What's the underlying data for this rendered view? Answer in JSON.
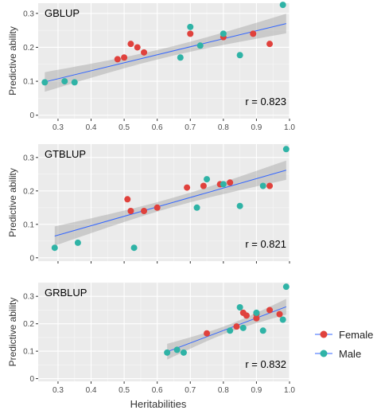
{
  "legend": {
    "entries": [
      {
        "label": "Female",
        "color": "#E0413C"
      },
      {
        "label": "Male",
        "color": "#2FB3A6"
      }
    ]
  },
  "chart_data": [
    {
      "type": "scatter",
      "title": "GBLUP",
      "r_label": "r = 0.823",
      "ylabel": "Predictive ability",
      "xlabel": "",
      "xlim": [
        0.24,
        1.0
      ],
      "ylim": [
        -0.01,
        0.33
      ],
      "xticks": [
        0.3,
        0.4,
        0.5,
        0.6,
        0.7,
        0.8,
        0.9,
        1.0
      ],
      "xtick_labels": [
        "0.3",
        "0.4",
        "0.5",
        "0.6",
        "0.7",
        "0.8",
        "0.9",
        "1.0"
      ],
      "yticks": [
        0,
        0.1,
        0.2,
        0.3
      ],
      "ytick_labels": [
        "0",
        "0.1",
        "0.2",
        "0.3"
      ],
      "show_x_tick_labels": true,
      "fit": {
        "x": [
          0.26,
          0.99
        ],
        "y": [
          0.098,
          0.27
        ]
      },
      "series": [
        {
          "name": "Female",
          "color": "#E0413C",
          "x": [
            0.48,
            0.5,
            0.52,
            0.54,
            0.56,
            0.7,
            0.8,
            0.89,
            0.94
          ],
          "y": [
            0.165,
            0.17,
            0.21,
            0.2,
            0.185,
            0.24,
            0.23,
            0.24,
            0.21
          ]
        },
        {
          "name": "Male",
          "color": "#2FB3A6",
          "x": [
            0.26,
            0.32,
            0.35,
            0.67,
            0.7,
            0.73,
            0.8,
            0.85,
            0.98
          ],
          "y": [
            0.097,
            0.1,
            0.097,
            0.17,
            0.26,
            0.205,
            0.24,
            0.177,
            0.325
          ]
        }
      ]
    },
    {
      "type": "scatter",
      "title": "GTBLUP",
      "r_label": "r = 0.821",
      "ylabel": "Predictive ability",
      "xlabel": "",
      "xlim": [
        0.24,
        1.0
      ],
      "ylim": [
        -0.01,
        0.34
      ],
      "xticks": [
        0.3,
        0.4,
        0.5,
        0.6,
        0.7,
        0.8,
        0.9,
        1.0
      ],
      "xtick_labels": [
        "0.3",
        "0.4",
        "0.5",
        "0.6",
        "0.7",
        "0.8",
        "0.9",
        "1.0"
      ],
      "yticks": [
        0,
        0.1,
        0.2,
        0.3
      ],
      "ytick_labels": [
        "0",
        "0.1",
        "0.2",
        "0.3"
      ],
      "show_x_tick_labels": false,
      "fit": {
        "x": [
          0.29,
          0.99
        ],
        "y": [
          0.065,
          0.262
        ]
      },
      "series": [
        {
          "name": "Female",
          "color": "#E0413C",
          "x": [
            0.51,
            0.52,
            0.56,
            0.6,
            0.69,
            0.74,
            0.79,
            0.82,
            0.94
          ],
          "y": [
            0.175,
            0.14,
            0.14,
            0.15,
            0.21,
            0.215,
            0.22,
            0.225,
            0.215
          ]
        },
        {
          "name": "Male",
          "color": "#2FB3A6",
          "x": [
            0.29,
            0.36,
            0.53,
            0.72,
            0.75,
            0.8,
            0.85,
            0.92,
            0.99
          ],
          "y": [
            0.03,
            0.045,
            0.03,
            0.15,
            0.235,
            0.22,
            0.155,
            0.215,
            0.325
          ]
        }
      ]
    },
    {
      "type": "scatter",
      "title": "GRBLUP",
      "r_label": "r = 0.832",
      "ylabel": "Predictive ability",
      "xlabel": "Heritabilities",
      "xlim": [
        0.24,
        1.0
      ],
      "ylim": [
        -0.01,
        0.35
      ],
      "xticks": [
        0.3,
        0.4,
        0.5,
        0.6,
        0.7,
        0.8,
        0.9,
        1.0
      ],
      "xtick_labels": [
        "0.3",
        "0.4",
        "0.5",
        "0.6",
        "0.7",
        "0.8",
        "0.9",
        "1.0"
      ],
      "yticks": [
        0,
        0.1,
        0.2,
        0.3
      ],
      "ytick_labels": [
        "0",
        "0.1",
        "0.2",
        "0.3"
      ],
      "show_x_tick_labels": true,
      "fit": {
        "x": [
          0.63,
          0.99
        ],
        "y": [
          0.098,
          0.262
        ]
      },
      "series": [
        {
          "name": "Female",
          "color": "#E0413C",
          "x": [
            0.75,
            0.84,
            0.86,
            0.87,
            0.9,
            0.9,
            0.94,
            0.97
          ],
          "y": [
            0.165,
            0.19,
            0.24,
            0.23,
            0.235,
            0.22,
            0.25,
            0.235
          ]
        },
        {
          "name": "Male",
          "color": "#2FB3A6",
          "x": [
            0.63,
            0.66,
            0.68,
            0.82,
            0.85,
            0.86,
            0.9,
            0.92,
            0.98,
            0.99
          ],
          "y": [
            0.095,
            0.105,
            0.095,
            0.175,
            0.26,
            0.185,
            0.24,
            0.175,
            0.215,
            0.335
          ]
        }
      ]
    }
  ]
}
